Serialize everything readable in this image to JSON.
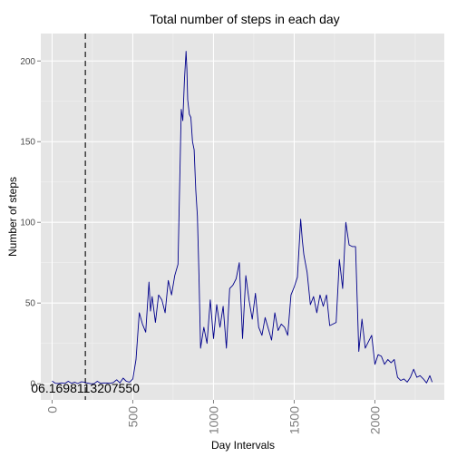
{
  "chart_data": {
    "type": "line",
    "title": "Total number of steps in each day",
    "xlabel": "Day Intervals",
    "ylabel": "Number of steps",
    "xlim": [
      -70,
      2430
    ],
    "ylim": [
      -10,
      217
    ],
    "x_ticks": [
      0,
      500,
      1000,
      1500,
      2000
    ],
    "y_ticks": [
      0,
      50,
      100,
      150,
      200
    ],
    "grid": true,
    "line_color": "#00008b",
    "vline": {
      "x": 206,
      "style": "dashed",
      "color": "#000000"
    },
    "annotation": {
      "text": "06.1698113207550",
      "x": 206,
      "y": 0
    },
    "series": [
      {
        "x": [
          0,
          20,
          40,
          60,
          80,
          100,
          120,
          140,
          160,
          180,
          200,
          220,
          240,
          260,
          280,
          300,
          320,
          340,
          360,
          380,
          400,
          420,
          440,
          460,
          480,
          500,
          520,
          540,
          560,
          580,
          600,
          610,
          620,
          640,
          660,
          680,
          700,
          720,
          740,
          760,
          780,
          800,
          810,
          820,
          830,
          835,
          840,
          850,
          860,
          870,
          880,
          890,
          900,
          910,
          920,
          940,
          960,
          980,
          1000,
          1020,
          1040,
          1060,
          1080,
          1100,
          1120,
          1140,
          1160,
          1180,
          1200,
          1220,
          1240,
          1260,
          1280,
          1300,
          1320,
          1340,
          1360,
          1380,
          1400,
          1420,
          1440,
          1460,
          1480,
          1500,
          1520,
          1540,
          1550,
          1560,
          1580,
          1600,
          1620,
          1640,
          1660,
          1680,
          1700,
          1720,
          1740,
          1760,
          1780,
          1800,
          1820,
          1840,
          1860,
          1880,
          1900,
          1920,
          1940,
          1960,
          1980,
          2000,
          2020,
          2040,
          2060,
          2080,
          2100,
          2120,
          2140,
          2160,
          2180,
          2200,
          2220,
          2240,
          2260,
          2280,
          2300,
          2320,
          2340,
          2355
        ],
        "y": [
          1.7,
          0.3,
          0.1,
          0.5,
          0.2,
          1.5,
          0.3,
          0.9,
          0.1,
          1.2,
          1.0,
          0.4,
          0,
          0,
          1.5,
          0.2,
          0.5,
          0.4,
          0.3,
          0.8,
          2.5,
          0.5,
          3.5,
          1.5,
          1.0,
          3.0,
          15,
          44,
          37,
          32,
          63,
          45,
          54,
          38,
          55,
          52,
          44,
          64,
          55,
          67,
          74,
          170,
          163,
          188,
          206,
          195,
          176,
          167,
          165,
          150,
          145,
          120,
          104,
          68,
          22,
          35,
          25,
          52,
          28,
          49,
          35,
          48,
          22,
          59,
          61,
          65,
          75,
          28,
          67,
          52,
          40,
          56,
          35,
          30,
          41,
          34,
          27,
          44,
          33,
          37,
          35,
          30,
          55,
          60,
          66,
          102,
          89,
          80,
          69,
          49,
          54,
          44,
          55,
          48,
          55,
          36,
          37,
          38,
          77,
          59,
          100,
          86,
          85,
          85,
          20,
          40,
          22,
          26,
          30,
          12,
          18,
          17,
          12,
          15,
          13,
          15,
          4,
          2,
          3,
          1,
          4,
          9,
          4,
          5,
          3,
          0.5,
          5,
          1
        ]
      }
    ]
  }
}
